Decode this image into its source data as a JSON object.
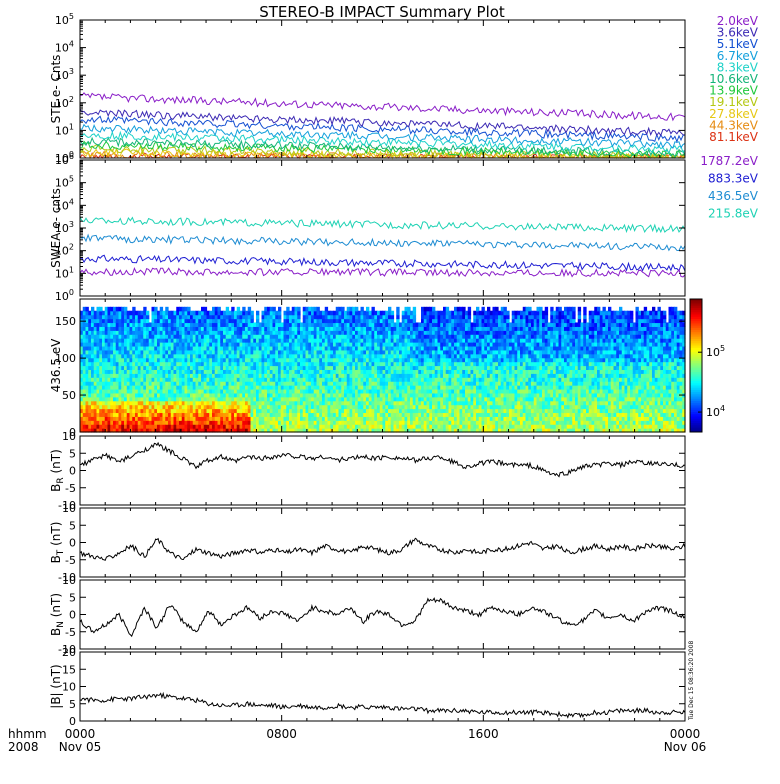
{
  "title": "STEREO-B IMPACT Summary Plot",
  "footer": {
    "left_top": "hhmm",
    "left_bottom": "2008",
    "times": [
      "0000",
      "0800",
      "1600",
      "0000"
    ],
    "dates": [
      "Nov 05",
      "Nov 06"
    ]
  },
  "sidebar_stamp": "Tue Dec 15 08:36:20 2008",
  "chart_data": [
    {
      "type": "line",
      "ylabel": "STE e- Cnts",
      "yscale": "log",
      "ylim": [
        1,
        100000
      ],
      "ytick_labels": [
        "10^0",
        "10^1",
        "10^2",
        "10^3",
        "10^4",
        "10^5"
      ],
      "x_hours": [
        0,
        24
      ],
      "series": [
        {
          "name": "2.0keV",
          "color": "#8a1ec8",
          "start": 170,
          "end": 30
        },
        {
          "name": "3.6keV",
          "color": "#3c2ab4",
          "start": 45,
          "end": 8
        },
        {
          "name": "5.1keV",
          "color": "#1450d2",
          "start": 25,
          "end": 5
        },
        {
          "name": "6.7keV",
          "color": "#14a0dc",
          "start": 12,
          "end": 3
        },
        {
          "name": "8.3keV",
          "color": "#1ed2c8",
          "start": 7,
          "end": 2
        },
        {
          "name": "10.6keV",
          "color": "#14b478",
          "start": 4,
          "end": 1.5
        },
        {
          "name": "13.9keV",
          "color": "#1ec83c",
          "start": 3,
          "end": 1.3
        },
        {
          "name": "19.1keV",
          "color": "#b4c814",
          "start": 2.2,
          "end": 1.1
        },
        {
          "name": "27.8keV",
          "color": "#e6c814",
          "start": 1.6,
          "end": 1.0
        },
        {
          "name": "44.3keV",
          "color": "#e68c14",
          "start": 1.3,
          "end": 1.0
        },
        {
          "name": "81.1keV",
          "color": "#dc3214",
          "start": 1.1,
          "end": 1.0
        }
      ]
    },
    {
      "type": "line",
      "ylabel": "SWEA e- cnts",
      "yscale": "log",
      "ylim": [
        1,
        1000000
      ],
      "ytick_labels": [
        "10^0",
        "10^1",
        "10^2",
        "10^3",
        "10^4",
        "10^5",
        "10^6"
      ],
      "series": [
        {
          "name": "1787.2eV",
          "color": "#8a1ec8",
          "start": 12,
          "end": 10
        },
        {
          "name": "883.3eV",
          "color": "#1e1ed2",
          "start": 45,
          "end": 18
        },
        {
          "name": "436.5eV",
          "color": "#1e8cd2",
          "start": 350,
          "end": 140
        },
        {
          "name": "215.8eV",
          "color": "#1ed2b4",
          "start": 2200,
          "end": 900
        }
      ]
    },
    {
      "type": "heatmap",
      "ylabel": "436.5 eV",
      "ylim": [
        0,
        180
      ],
      "y_ticks": [
        0,
        50,
        100,
        150
      ],
      "colorbar_ticks": [
        "10^5",
        "10^4"
      ],
      "zscale": "log"
    },
    {
      "type": "line",
      "ylabel": "B_R (nT)",
      "ylim": [
        -10,
        10
      ],
      "y_ticks": [
        -10,
        -5,
        0,
        5,
        10
      ],
      "series": [
        {
          "name": "",
          "color": "#000000",
          "values": [
            1.5,
            3,
            4.5,
            2.5,
            4,
            6,
            7.5,
            5.5,
            3.5,
            1,
            3,
            4,
            2.5,
            4,
            3.5,
            4,
            4.5,
            4,
            3.5,
            4,
            3,
            3.5,
            4,
            3.5,
            4,
            3.5,
            3,
            3.5,
            4,
            2.5,
            1,
            2,
            2.5,
            2,
            1.5,
            1.5,
            0,
            -1.5,
            -0.5,
            1,
            1.5,
            2,
            1.5,
            2.5,
            2,
            2,
            1.5,
            1.5
          ]
        }
      ]
    },
    {
      "type": "line",
      "ylabel": "B_T (nT)",
      "ylim": [
        -10,
        10
      ],
      "y_ticks": [
        -10,
        -5,
        0,
        5,
        10
      ],
      "series": [
        {
          "name": "",
          "color": "#000000",
          "values": [
            -3,
            -4,
            -5,
            -3,
            -1,
            -4,
            1,
            -3,
            -5,
            -2,
            -3,
            -4,
            -3,
            -2,
            -3,
            -2,
            -3,
            -2,
            -3,
            -1,
            -2,
            -3,
            -1,
            -2,
            -3,
            -2,
            1,
            -1,
            -2,
            -3,
            -2,
            -3,
            -2,
            -2,
            -1,
            0,
            -2,
            -1,
            -3,
            -2,
            -1,
            -2,
            -1,
            -2,
            -1,
            -1,
            -2,
            -1
          ]
        }
      ]
    },
    {
      "type": "line",
      "ylabel": "B_N (nT)",
      "ylim": [
        -10,
        10
      ],
      "y_ticks": [
        -10,
        -5,
        0,
        5,
        10
      ],
      "series": [
        {
          "name": "",
          "color": "#000000",
          "values": [
            -2,
            -5,
            -3,
            0,
            -6,
            2,
            -4,
            3,
            -2,
            -5,
            1,
            -3,
            0,
            2,
            -1,
            1,
            0,
            -2,
            2,
            1,
            0,
            2,
            -2,
            1,
            0,
            -3,
            -2,
            4,
            4,
            2,
            1,
            0,
            2,
            1,
            0,
            2,
            1,
            -1,
            -3,
            -2,
            1,
            -1,
            0,
            -2,
            1,
            2,
            1,
            -1
          ]
        }
      ]
    },
    {
      "type": "line",
      "ylabel": "|B| (nT)",
      "ylim": [
        0,
        20
      ],
      "y_ticks": [
        0,
        5,
        10,
        15,
        20
      ],
      "series": [
        {
          "name": "",
          "color": "#000000",
          "values": [
            6.5,
            6,
            6,
            6.5,
            6.5,
            7,
            7.5,
            7,
            6.5,
            6,
            5,
            4.5,
            4.5,
            5,
            4.5,
            4.5,
            4,
            4.5,
            4,
            4,
            4.5,
            4,
            4,
            4,
            4,
            3.5,
            3.5,
            3,
            3,
            3,
            3,
            2.5,
            2.5,
            2.5,
            2.5,
            2.5,
            2.5,
            2,
            1.5,
            1.5,
            2.5,
            2.5,
            3,
            3,
            3,
            2.5,
            2.5,
            2.5
          ]
        }
      ]
    }
  ]
}
